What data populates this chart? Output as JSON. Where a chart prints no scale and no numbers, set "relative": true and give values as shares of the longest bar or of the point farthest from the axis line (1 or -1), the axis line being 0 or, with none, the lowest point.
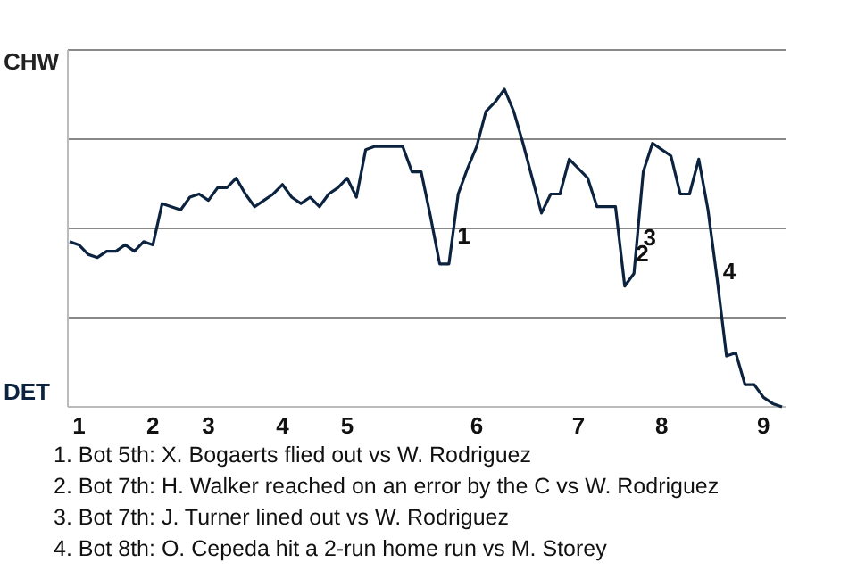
{
  "chart_data": {
    "type": "line",
    "relative": true,
    "categories": [
      null,
      "1",
      null,
      null,
      null,
      null,
      null,
      null,
      null,
      "2",
      null,
      null,
      null,
      null,
      null,
      "3",
      null,
      null,
      null,
      null,
      null,
      null,
      null,
      "4",
      null,
      null,
      null,
      null,
      null,
      null,
      "5",
      null,
      null,
      null,
      null,
      null,
      null,
      null,
      null,
      null,
      null,
      null,
      null,
      null,
      "6",
      null,
      null,
      null,
      null,
      null,
      null,
      null,
      null,
      null,
      null,
      "7",
      null,
      null,
      null,
      null,
      null,
      null,
      null,
      null,
      "8",
      null,
      null,
      null,
      null,
      null,
      null,
      null,
      null,
      null,
      null,
      "9",
      null,
      null
    ],
    "series": [
      {
        "color": "#0c2340",
        "values": [
          0.52,
          0.51,
          0.48,
          0.47,
          0.49,
          0.49,
          0.51,
          0.49,
          0.52,
          0.51,
          0.64,
          0.63,
          0.62,
          0.66,
          0.67,
          0.65,
          0.69,
          0.69,
          0.72,
          0.67,
          0.63,
          0.65,
          0.67,
          0.7,
          0.66,
          0.64,
          0.66,
          0.63,
          0.67,
          0.69,
          0.72,
          0.66,
          0.81,
          0.82,
          0.82,
          0.82,
          0.82,
          0.74,
          0.74,
          0.6,
          0.45,
          0.45,
          0.67,
          0.75,
          0.82,
          0.93,
          0.96,
          1,
          0.93,
          0.83,
          0.72,
          0.61,
          0.67,
          0.67,
          0.78,
          0.75,
          0.72,
          0.63,
          0.63,
          0.63,
          0.38,
          0.42,
          0.74,
          0.83,
          0.81,
          0.79,
          0.67,
          0.67,
          0.78,
          0.62,
          0.4,
          0.16,
          0.17,
          0.07,
          0.07,
          0.03,
          0.01,
          0
        ]
      }
    ],
    "grid": true,
    "marker": "none",
    "line_style": "solid",
    "annotations": [
      "CHW",
      "DET",
      "1",
      "2",
      "3",
      "4",
      "1. Bot 5th: X. Bogaerts flied out vs W. Rodriguez",
      "2. Bot 7th: H. Walker reached on an error by the C vs W. Rodriguez",
      "3. Bot 7th: J. Turner lined out vs W. Rodriguez",
      "4. Bot 8th: O. Cepeda hit a 2-run home run vs M. Storey"
    ]
  }
}
